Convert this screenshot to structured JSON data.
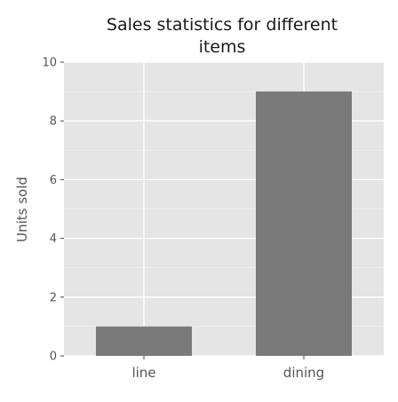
{
  "chart_data": {
    "type": "bar",
    "title_lines": [
      "Sales statistics for different",
      "items"
    ],
    "xlabel": "",
    "ylabel": "Units sold",
    "categories": [
      "line",
      "dining"
    ],
    "values": [
      1,
      9
    ],
    "ylim": [
      0,
      10
    ],
    "yticks": [
      0,
      2,
      4,
      6,
      8,
      10
    ],
    "grid": true,
    "colors": {
      "bar": "#7a7a7a",
      "panel_background": "#e5e5e5",
      "grid_major": "#ffffff",
      "grid_minor": "#efefef"
    }
  }
}
